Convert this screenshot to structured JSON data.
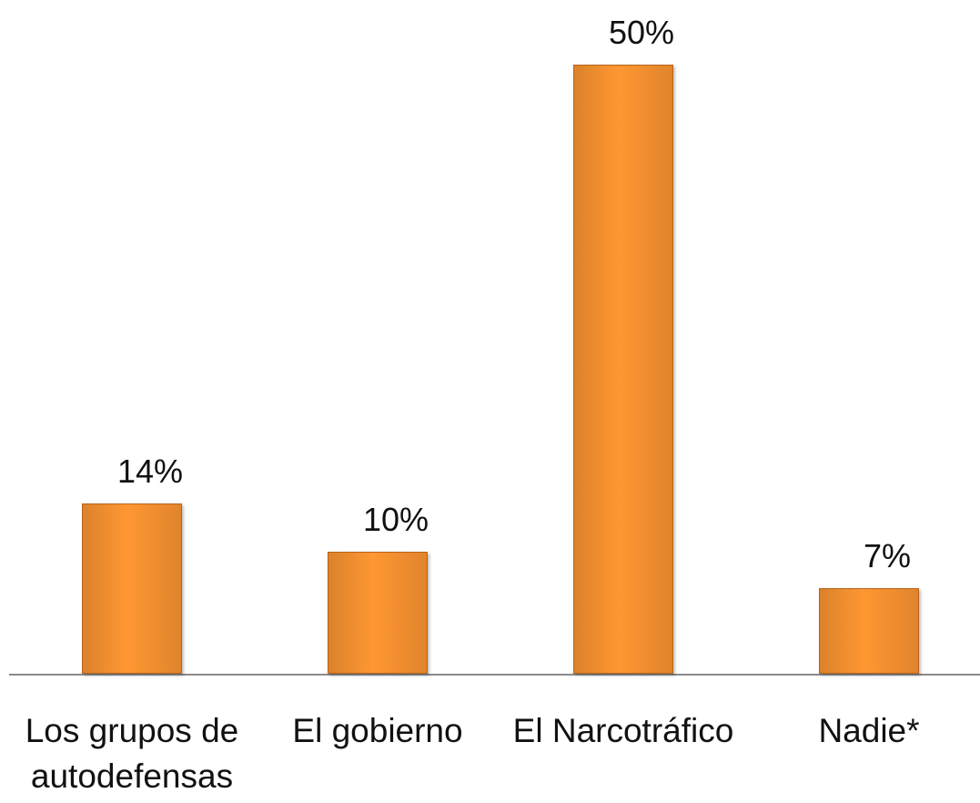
{
  "chart_data": {
    "type": "bar",
    "categories": [
      "Los grupos de autodefensas",
      "El gobierno",
      "El Narcotráfico",
      "Nadie*"
    ],
    "values": [
      14,
      10,
      50,
      7
    ],
    "value_labels": [
      "14%",
      "10%",
      "50%",
      "7%"
    ],
    "color": "#f39030"
  }
}
